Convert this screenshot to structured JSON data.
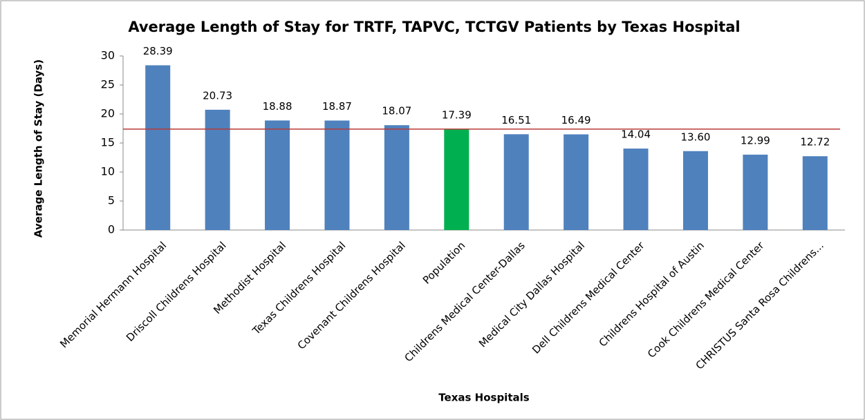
{
  "chart_data": {
    "type": "bar",
    "title": "Average Length of Stay for TRTF, TAPVC, TCTGV Patients by Texas Hospital",
    "x_label": "Texas Hospitals",
    "y_label": "Average Length of Stay (Days)",
    "categories": [
      "Memorial Hermann Hospital",
      "Driscoll Childrens Hospital",
      "Methodist Hospital",
      "Texas Childrens Hospital",
      "Covenant Childrens Hospital",
      "Population",
      "Childrens Medical Center-Dallas",
      "Medical City Dallas Hospital",
      "Dell Childrens Medical Center",
      "Childrens Hospital of Austin",
      "Cook Childrens Medical Center",
      "CHRISTUS Santa Rosa Childrens..."
    ],
    "values": [
      28.39,
      20.73,
      18.88,
      18.87,
      18.07,
      17.39,
      16.51,
      16.49,
      14.04,
      13.6,
      12.99,
      12.72
    ],
    "value_labels": [
      "28.39",
      "20.73",
      "18.88",
      "18.87",
      "18.07",
      "17.39",
      "16.51",
      "16.49",
      "14.04",
      "13.60",
      "12.99",
      "12.72"
    ],
    "colors": [
      "#4f81bd",
      "#4f81bd",
      "#4f81bd",
      "#4f81bd",
      "#4f81bd",
      "#00b050",
      "#4f81bd",
      "#4f81bd",
      "#4f81bd",
      "#4f81bd",
      "#4f81bd",
      "#4f81bd"
    ],
    "reference_line": {
      "value": 17.39,
      "color": "#b83a36"
    },
    "ylim": [
      0,
      30
    ],
    "yticks": [
      0,
      5,
      10,
      15,
      20,
      25,
      30
    ],
    "grid": false
  }
}
